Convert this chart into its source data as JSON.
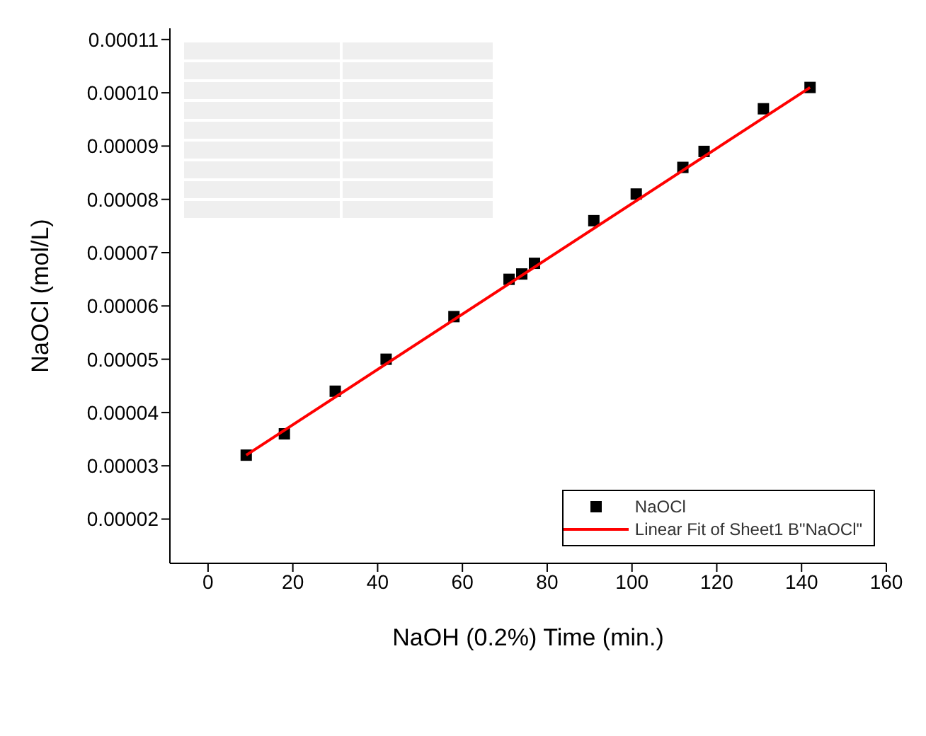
{
  "chart_data": {
    "type": "scatter",
    "xlabel": "NaOH (0.2%)      Time (min.)",
    "ylabel": "NaOCl (mol/L)",
    "xlim": [
      -9,
      160
    ],
    "xticks": [
      0,
      20,
      40,
      60,
      80,
      100,
      120,
      140,
      160
    ],
    "ylim": [
      1.17e-05,
      0.0001121
    ],
    "yticks": [
      {
        "value": 2e-05,
        "label": "0.00002"
      },
      {
        "value": 3e-05,
        "label": "0.00003"
      },
      {
        "value": 4e-05,
        "label": "0.00004"
      },
      {
        "value": 5e-05,
        "label": "0.00005"
      },
      {
        "value": 6e-05,
        "label": "0.00006"
      },
      {
        "value": 7e-05,
        "label": "0.00007"
      },
      {
        "value": 8e-05,
        "label": "0.00008"
      },
      {
        "value": 9e-05,
        "label": "0.00009"
      },
      {
        "value": 0.0001,
        "label": "0.00010"
      },
      {
        "value": 0.00011,
        "label": "0.00011"
      }
    ],
    "grid": false,
    "legend": "bottom right",
    "series": [
      {
        "name": "NaOCl",
        "type": "scatter",
        "marker": "square",
        "color": "#000000",
        "x": [
          9,
          18,
          30,
          42,
          58,
          71,
          74,
          77,
          91,
          101,
          112,
          117,
          131,
          142
        ],
        "values": [
          3.2e-05,
          3.6e-05,
          4.4e-05,
          5e-05,
          5.8e-05,
          6.5e-05,
          6.6e-05,
          6.8e-05,
          7.6e-05,
          8.1e-05,
          8.6e-05,
          8.9e-05,
          9.7e-05,
          0.000101
        ]
      },
      {
        "name": "Linear Fit of Sheet1 B\"NaOCl\"",
        "type": "line",
        "marker": "none",
        "line_style": "solid",
        "color": "#ff0000",
        "x": [
          9,
          142
        ],
        "values": [
          3.2e-05,
          0.000101
        ]
      }
    ]
  }
}
